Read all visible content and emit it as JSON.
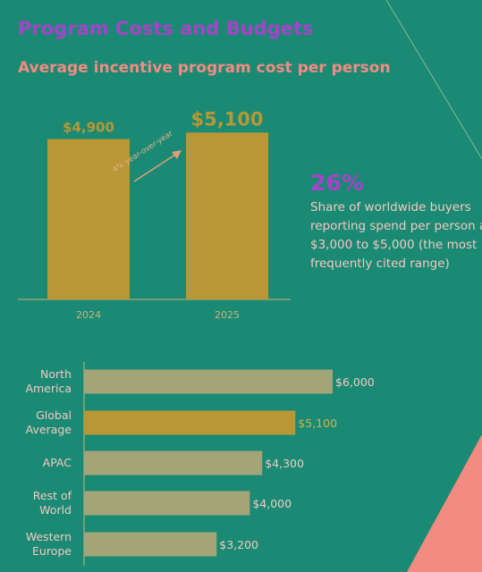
{
  "header": {
    "title": "Program Costs and Budgets",
    "subtitle": "Average incentive program cost per person"
  },
  "stat": {
    "value": "26%",
    "description_lines": [
      "Share of worldwide buyers",
      "reporting spend per person at",
      "$3,000 to $5,000 (the most",
      "frequently cited range)"
    ]
  },
  "colors": {
    "background": "#1b8a74",
    "gold": "#b89734",
    "grey_bar": "#a3a578",
    "pink": "#f28b82",
    "purple": "#a543c9",
    "label": "#f3c8c0"
  },
  "chart_data": [
    {
      "type": "bar",
      "categories": [
        "2024",
        "2025"
      ],
      "values": [
        4900,
        5100
      ],
      "value_labels": [
        "$4,900",
        "$5,100"
      ],
      "annotation": "4% year-over-year",
      "ylim": [
        0,
        5600
      ]
    },
    {
      "type": "bar",
      "orientation": "horizontal",
      "categories": [
        [
          "North",
          "America"
        ],
        [
          "Global",
          "Average"
        ],
        [
          "APAC"
        ],
        [
          "Rest of",
          "World"
        ],
        [
          "Western",
          "Europe"
        ]
      ],
      "values": [
        6000,
        5100,
        4300,
        4000,
        3200
      ],
      "value_labels": [
        "$6,000",
        "$5,100",
        "$4,300",
        "$4,000",
        "$3,200"
      ],
      "highlight_index": 1,
      "xlim": [
        0,
        6000
      ]
    }
  ]
}
